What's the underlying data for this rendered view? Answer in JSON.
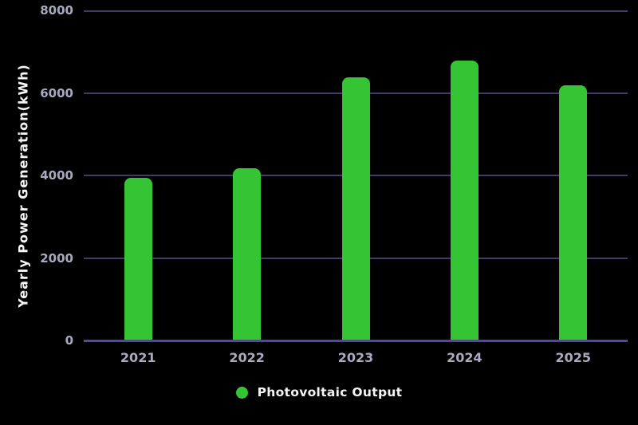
{
  "colors": {
    "background": "#000000",
    "bar": "#34c434",
    "gridline": "#3d3d68",
    "axis_line": "#50507a",
    "tick_label": "#a9a9bf",
    "axis_title_text": "#f5f5f8",
    "legend_text": "#f5f5f8",
    "legend_dot": "#34c434"
  },
  "chart_data": {
    "type": "bar",
    "categories": [
      "2021",
      "2022",
      "2023",
      "2024",
      "2025"
    ],
    "series": [
      {
        "name": "Photovoltaic Output",
        "values": [
          3950,
          4180,
          6380,
          6780,
          6190
        ]
      }
    ],
    "title": "",
    "xlabel": "",
    "ylabel": "Yearly Power Generation(kWh)",
    "ylim": [
      0,
      8000
    ],
    "yticks": [
      0,
      2000,
      4000,
      6000,
      8000
    ],
    "ytick_labels": [
      "0",
      "2000",
      "4000",
      "6000",
      "8000"
    ],
    "grid": true,
    "legend_position": "bottom"
  }
}
